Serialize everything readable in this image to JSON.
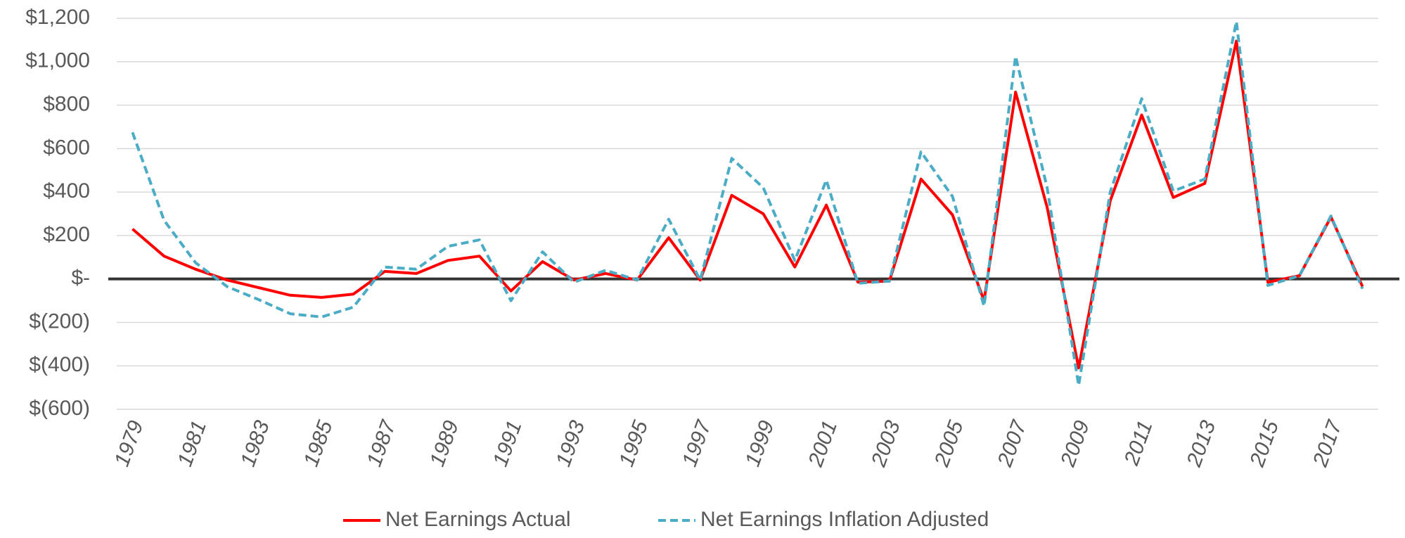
{
  "chart_data": {
    "type": "line",
    "categories": [
      "1979",
      null,
      "1981",
      null,
      "1983",
      null,
      "1985",
      null,
      "1987",
      null,
      "1989",
      null,
      "1991",
      null,
      "1993",
      null,
      "1995",
      null,
      "1997",
      null,
      "1999",
      null,
      "2001",
      null,
      "2003",
      null,
      "2005",
      null,
      "2007",
      null,
      "2009",
      null,
      "2011",
      null,
      "2013",
      null,
      "2015",
      null,
      "2017",
      null
    ],
    "series": [
      {
        "name": "Net Earnings Actual",
        "color": "#ff0000",
        "dash": false,
        "values": [
          230,
          105,
          45,
          -5,
          -40,
          -75,
          -85,
          -70,
          35,
          25,
          85,
          105,
          -55,
          80,
          -5,
          25,
          -5,
          190,
          -5,
          385,
          300,
          55,
          340,
          -15,
          -10,
          460,
          295,
          -100,
          860,
          330,
          -410,
          360,
          755,
          375,
          440,
          1095,
          -15,
          15,
          285,
          -35
        ]
      },
      {
        "name": "Net Earnings Inflation Adjusted",
        "color": "#4bacc6",
        "dash": true,
        "values": [
          675,
          270,
          75,
          -35,
          -95,
          -160,
          -175,
          -130,
          55,
          45,
          150,
          180,
          -100,
          125,
          -15,
          40,
          -5,
          275,
          -5,
          555,
          420,
          85,
          455,
          -20,
          -10,
          585,
          380,
          -125,
          1025,
          420,
          -490,
          400,
          830,
          405,
          460,
          1185,
          -30,
          15,
          290,
          -45
        ]
      }
    ],
    "ylim": [
      -600,
      1200
    ],
    "yticks": [
      {
        "value": -600,
        "label": "$(600)"
      },
      {
        "value": -400,
        "label": "$(400)"
      },
      {
        "value": -200,
        "label": "$(200)"
      },
      {
        "value": 0,
        "label": "$-"
      },
      {
        "value": 200,
        "label": "$200"
      },
      {
        "value": 400,
        "label": "$400"
      },
      {
        "value": 600,
        "label": "$600"
      },
      {
        "value": 800,
        "label": "$800"
      },
      {
        "value": 1000,
        "label": "$1,000"
      },
      {
        "value": 1200,
        "label": "$1,200"
      }
    ],
    "grid": true,
    "legend": "bottom"
  }
}
